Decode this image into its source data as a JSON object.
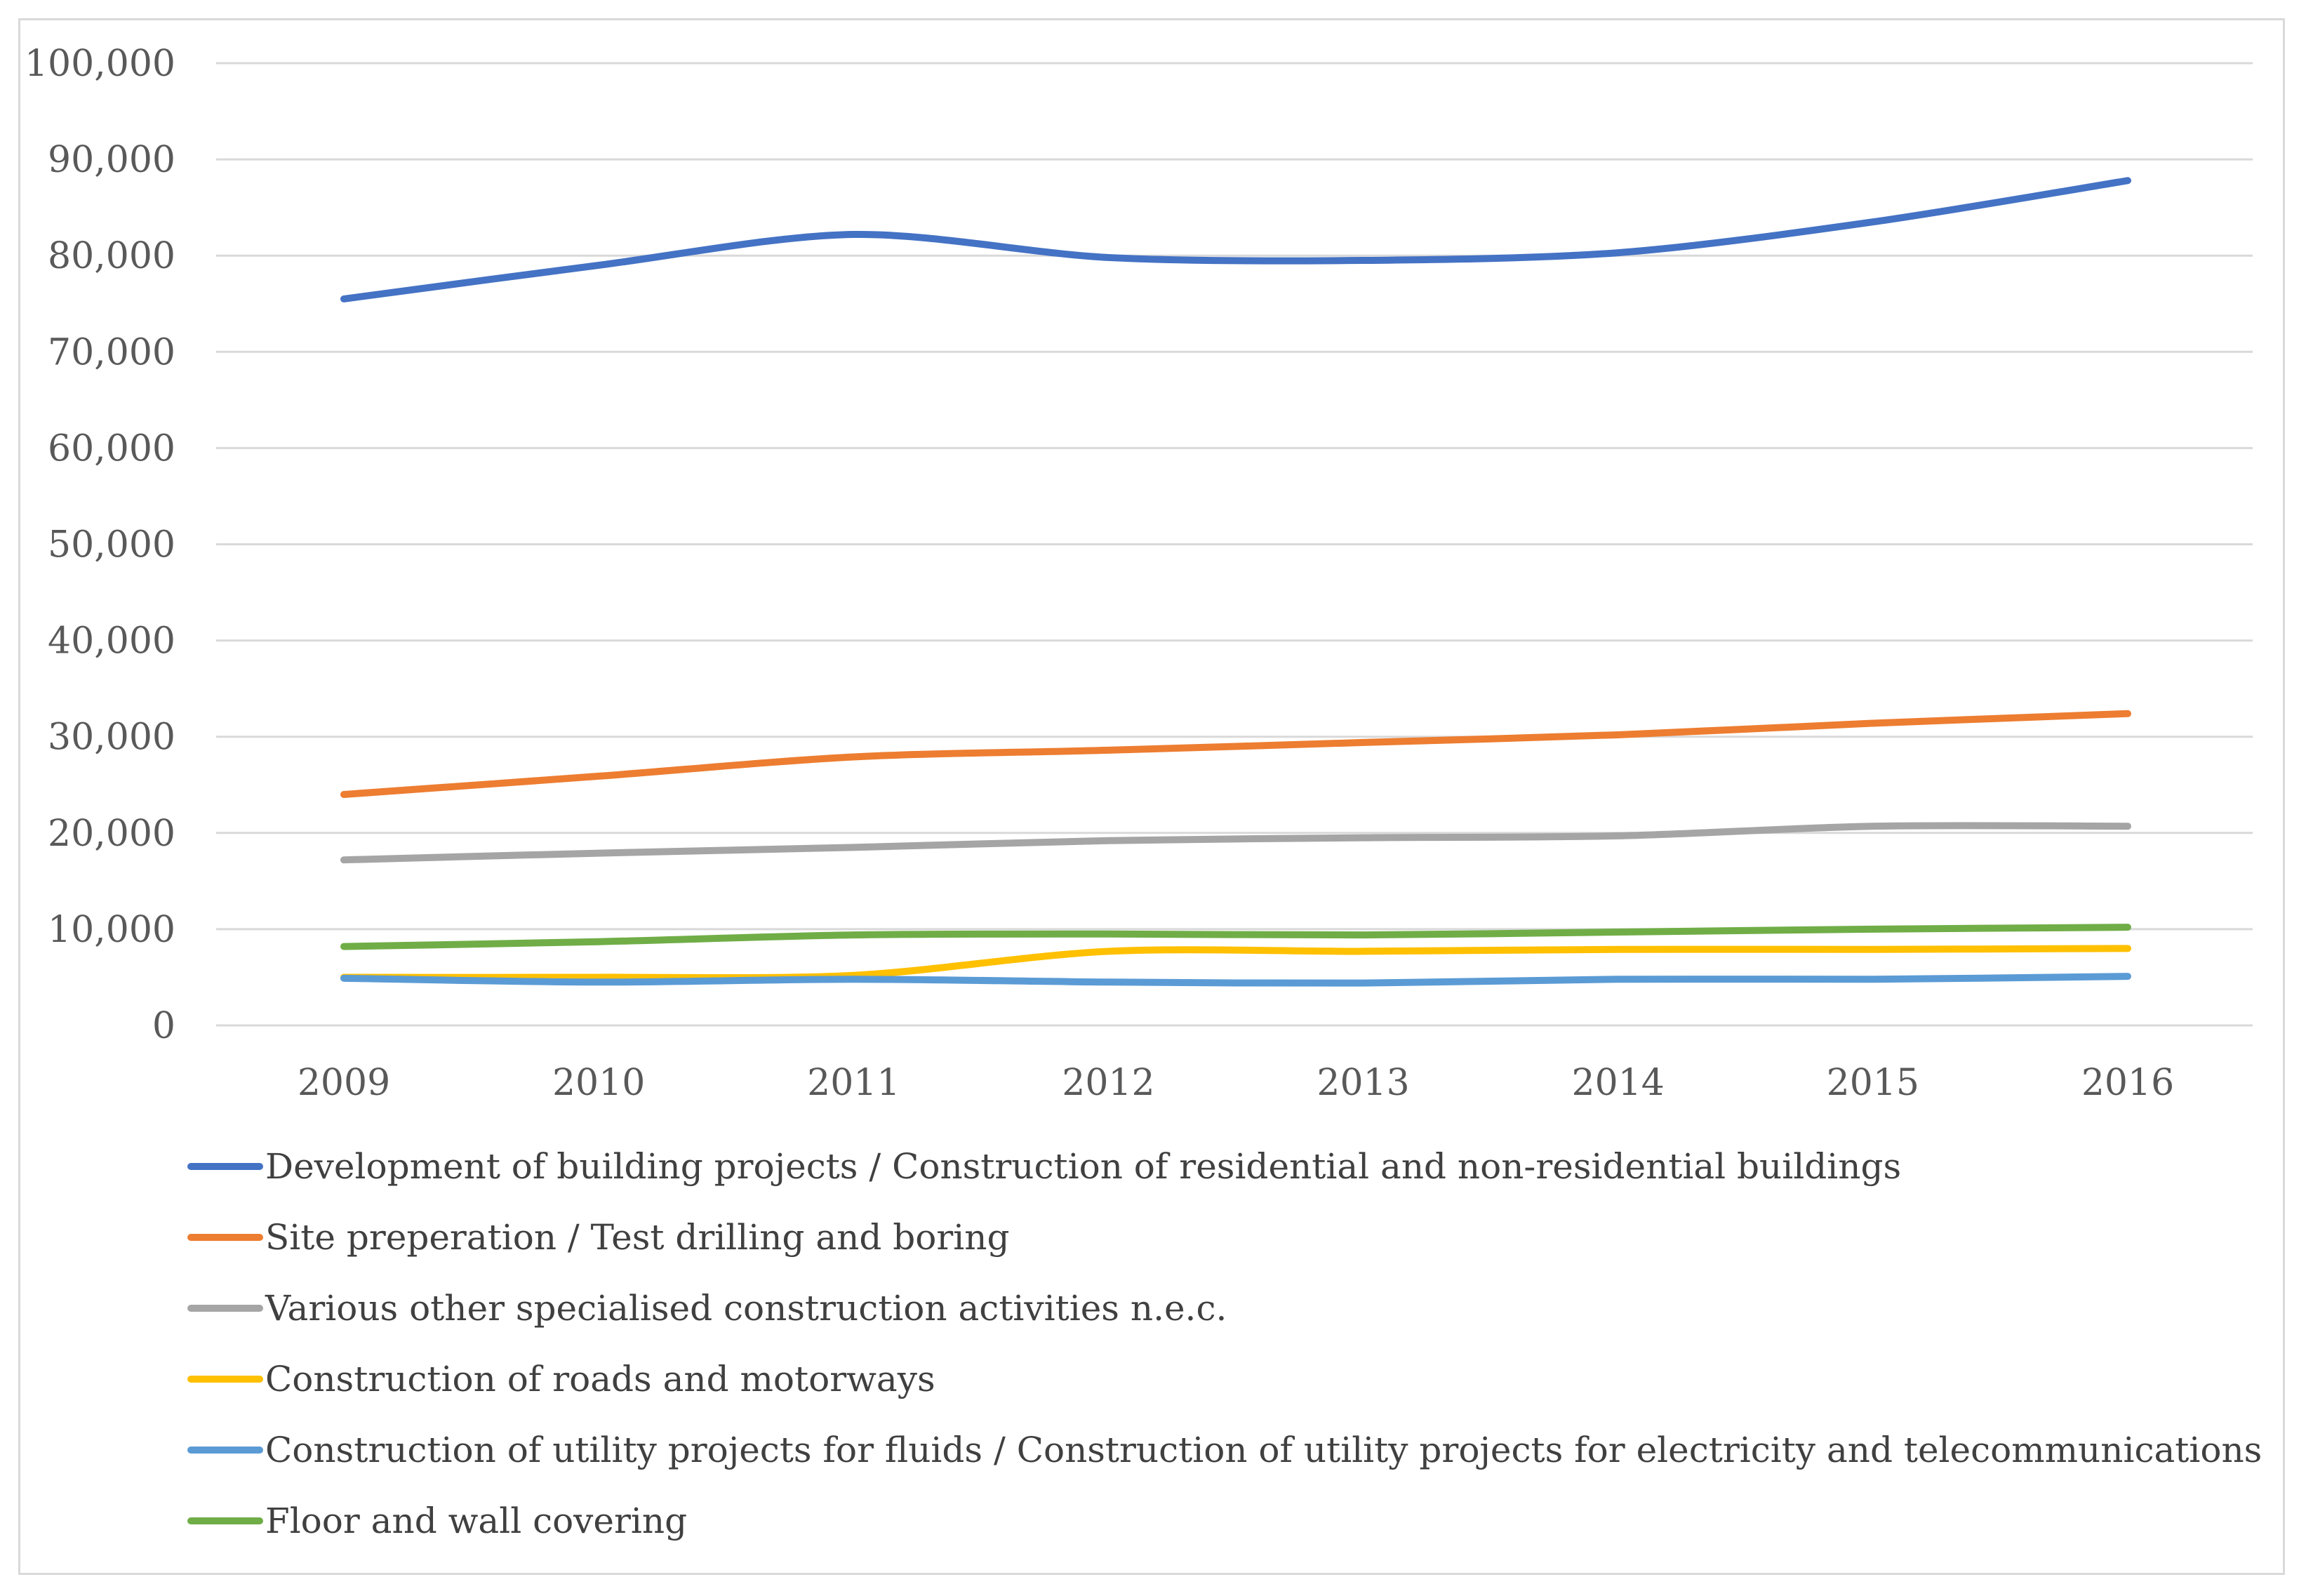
{
  "chart_data": {
    "type": "line",
    "title": "",
    "xlabel": "",
    "ylabel": "",
    "x": [
      "2009",
      "2010",
      "2011",
      "2012",
      "2013",
      "2014",
      "2015",
      "2016"
    ],
    "ylim": [
      0,
      100000
    ],
    "yticks": [
      0,
      10000,
      20000,
      30000,
      40000,
      50000,
      60000,
      70000,
      80000,
      90000,
      100000
    ],
    "ytick_labels": [
      "0",
      "10,000",
      "20,000",
      "30,000",
      "40,000",
      "50,000",
      "60,000",
      "70,000",
      "80,000",
      "90,000",
      "100,000"
    ],
    "grid": true,
    "legend_position": "bottom",
    "series": [
      {
        "name": "Development of building projects / Construction of residential and non-residential buildings",
        "color": "#4472c4",
        "values": [
          75500,
          79000,
          82200,
          79800,
          79500,
          80300,
          83500,
          87800
        ]
      },
      {
        "name": "Site preperation / Test drilling and boring",
        "color": "#ed7d31",
        "values": [
          24000,
          25900,
          27900,
          28600,
          29400,
          30200,
          31400,
          32400
        ]
      },
      {
        "name": "Various other specialised construction activities n.e.c.",
        "color": "#a5a5a5",
        "values": [
          17200,
          17900,
          18500,
          19200,
          19500,
          19700,
          20700,
          20700
        ]
      },
      {
        "name": "Construction of roads and motorways",
        "color": "#ffc000",
        "values": [
          5000,
          5000,
          5200,
          7700,
          7700,
          7900,
          7900,
          8000
        ]
      },
      {
        "name": "Construction of utility projects for fluids / Construction of utility projects for electricity and telecommunications",
        "color": "#5b9bd5",
        "values": [
          4900,
          4500,
          4800,
          4500,
          4400,
          4800,
          4800,
          5100
        ]
      },
      {
        "name": "Floor and wall covering",
        "color": "#70ad47",
        "values": [
          8200,
          8700,
          9400,
          9500,
          9400,
          9700,
          10000,
          10200
        ]
      }
    ]
  }
}
